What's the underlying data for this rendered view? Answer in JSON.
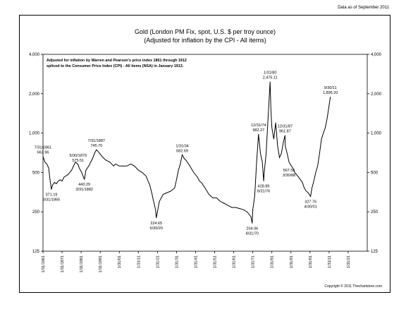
{
  "header": {
    "data_as_of": "Data as of September 2011",
    "copyright": "Copyright © 2011 Thechartstore.com"
  },
  "chart_data": {
    "type": "line",
    "title": "Gold (London PM Fix, spot, U.S. $ per troy ounce)",
    "subtitle": "(Adjusted for inflation by the CPI - All items)",
    "note_lines": [
      "Adjusted for inflation by Warren and Pearson's price index 1861 through 1912",
      "spliced to the Consumer Price Index (CPI) - All items (NSA) in January 1913."
    ],
    "y_scale": "log2",
    "ylim": [
      125,
      4000
    ],
    "y_ticks": [
      125,
      250,
      500,
      1000,
      2000,
      4000
    ],
    "y_tick_labels": [
      "125",
      "250",
      "500",
      "1,000",
      "2,000",
      "4,000"
    ],
    "xlim": [
      1861,
      2031
    ],
    "x_ticks": [
      1861,
      1871,
      1881,
      1891,
      1901,
      1911,
      1921,
      1931,
      1941,
      1951,
      1961,
      1971,
      1981,
      1991,
      2001,
      2011,
      2021
    ],
    "x_tick_labels": [
      "1/31/1861",
      "1/31/1871",
      "1/31/1881",
      "1/31/1891",
      "1/31/01",
      "1/31/11",
      "1/31/21",
      "1/31/31",
      "1/31/41",
      "1/31/51",
      "1/31/61",
      "1/31/71",
      "1/31/81",
      "1/31/91",
      "1/31/01",
      "1/31/11",
      "1/31/21"
    ],
    "grid": false,
    "line_color": "#000000",
    "series": [
      {
        "x": [
          1861,
          1862,
          1863,
          1864,
          1864.5,
          1865.4,
          1866,
          1867,
          1868,
          1869,
          1870,
          1871,
          1872,
          1873,
          1874,
          1875,
          1876,
          1877,
          1878,
          1879.4,
          1880,
          1881,
          1882,
          1882.7,
          1883.5,
          1885,
          1887,
          1888,
          1889,
          1890,
          1891,
          1892,
          1894,
          1896,
          1897,
          1898,
          1899,
          1901,
          1903,
          1905,
          1907,
          1909,
          1911,
          1913,
          1915,
          1917,
          1918,
          1919,
          1920,
          1920.4,
          1921,
          1922,
          1924,
          1926,
          1928,
          1930,
          1931,
          1932,
          1933,
          1934.0,
          1935,
          1936,
          1938,
          1940,
          1942,
          1943,
          1944,
          1946,
          1948,
          1950,
          1952,
          1954,
          1956,
          1958,
          1960,
          1962,
          1964,
          1966,
          1968,
          1970,
          1970.7,
          1971,
          1972,
          1973,
          1974.0,
          1975,
          1976,
          1976.7,
          1977,
          1978,
          1979,
          1980.08,
          1980.5,
          1981,
          1982,
          1983,
          1984,
          1985,
          1986,
          1987,
          1987.9,
          1988,
          1989,
          1990,
          1991,
          1992,
          1993,
          1994,
          1995,
          1996,
          1997,
          1998,
          1999,
          2000,
          2001.3,
          2002,
          2003,
          2004,
          2005,
          2006,
          2007,
          2008,
          2009,
          2010,
          2011.67
        ],
        "y": [
          662.96,
          600,
          580,
          540,
          460,
          371.19,
          400,
          420,
          410,
          430,
          440,
          430,
          460,
          470,
          480,
          500,
          520,
          560,
          600,
          575.51,
          540,
          510,
          470,
          443.29,
          520,
          560,
          640,
          700,
          745.7,
          720,
          690,
          660,
          620,
          600,
          580,
          560,
          580,
          560,
          560,
          560,
          580,
          560,
          520,
          500,
          470,
          400,
          350,
          300,
          260,
          224.65,
          250,
          300,
          340,
          350,
          360,
          380,
          440,
          520,
          580,
          682.69,
          640,
          620,
          560,
          500,
          460,
          430,
          420,
          380,
          340,
          320,
          320,
          300,
          290,
          280,
          270,
          270,
          265,
          260,
          250,
          230,
          204.06,
          260,
          330,
          600,
          982.27,
          700,
          600,
          428.89,
          500,
          700,
          1300,
          2475.11,
          1500,
          1100,
          900,
          1200,
          800,
          650,
          700,
          850,
          961.87,
          800,
          700,
          600,
          567.55,
          540,
          500,
          480,
          460,
          440,
          420,
          380,
          360,
          350,
          327.76,
          380,
          430,
          500,
          560,
          700,
          900,
          1000,
          1100,
          1300,
          1895.2
        ]
      }
    ],
    "annotations": [
      {
        "x": 1861,
        "y": 662.96,
        "label": "7/31/1861\n662.96",
        "pos": "above"
      },
      {
        "x": 1865.4,
        "y": 371.19,
        "label": "371.19\n3/31/1865",
        "pos": "below"
      },
      {
        "x": 1879.4,
        "y": 575.51,
        "label": "5/30/1879\n575.51",
        "pos": "above"
      },
      {
        "x": 1882.7,
        "y": 443.29,
        "label": "443.29\n3/31/1882",
        "pos": "below"
      },
      {
        "x": 1889,
        "y": 745.7,
        "label": "7/31/1887\n745.70",
        "pos": "above"
      },
      {
        "x": 1920.4,
        "y": 224.65,
        "label": "224.65\n5/30/20",
        "pos": "below"
      },
      {
        "x": 1934.0,
        "y": 682.69,
        "label": "1/31/34\n682.69",
        "pos": "above"
      },
      {
        "x": 1970.7,
        "y": 204.06,
        "label": "204.06\n8/31/70",
        "pos": "below"
      },
      {
        "x": 1974.0,
        "y": 982.27,
        "label": "12/31/74\n982.27",
        "pos": "above"
      },
      {
        "x": 1976.7,
        "y": 428.89,
        "label": "428.89\n8/31/76",
        "pos": "below"
      },
      {
        "x": 1980.08,
        "y": 2475.11,
        "label": "1/31/80\n2,475.11",
        "pos": "above"
      },
      {
        "x": 1987.9,
        "y": 961.87,
        "label": "12/31/87\n961.87",
        "pos": "above"
      },
      {
        "x": 1990,
        "y": 567.55,
        "label": "567.55\n3/30/88",
        "pos": "below"
      },
      {
        "x": 2001.3,
        "y": 327.76,
        "label": "327.76\n4/30/01",
        "pos": "below"
      },
      {
        "x": 2011.67,
        "y": 1895.2,
        "label": "9/30/11\n1,895.20",
        "pos": "above"
      }
    ]
  }
}
